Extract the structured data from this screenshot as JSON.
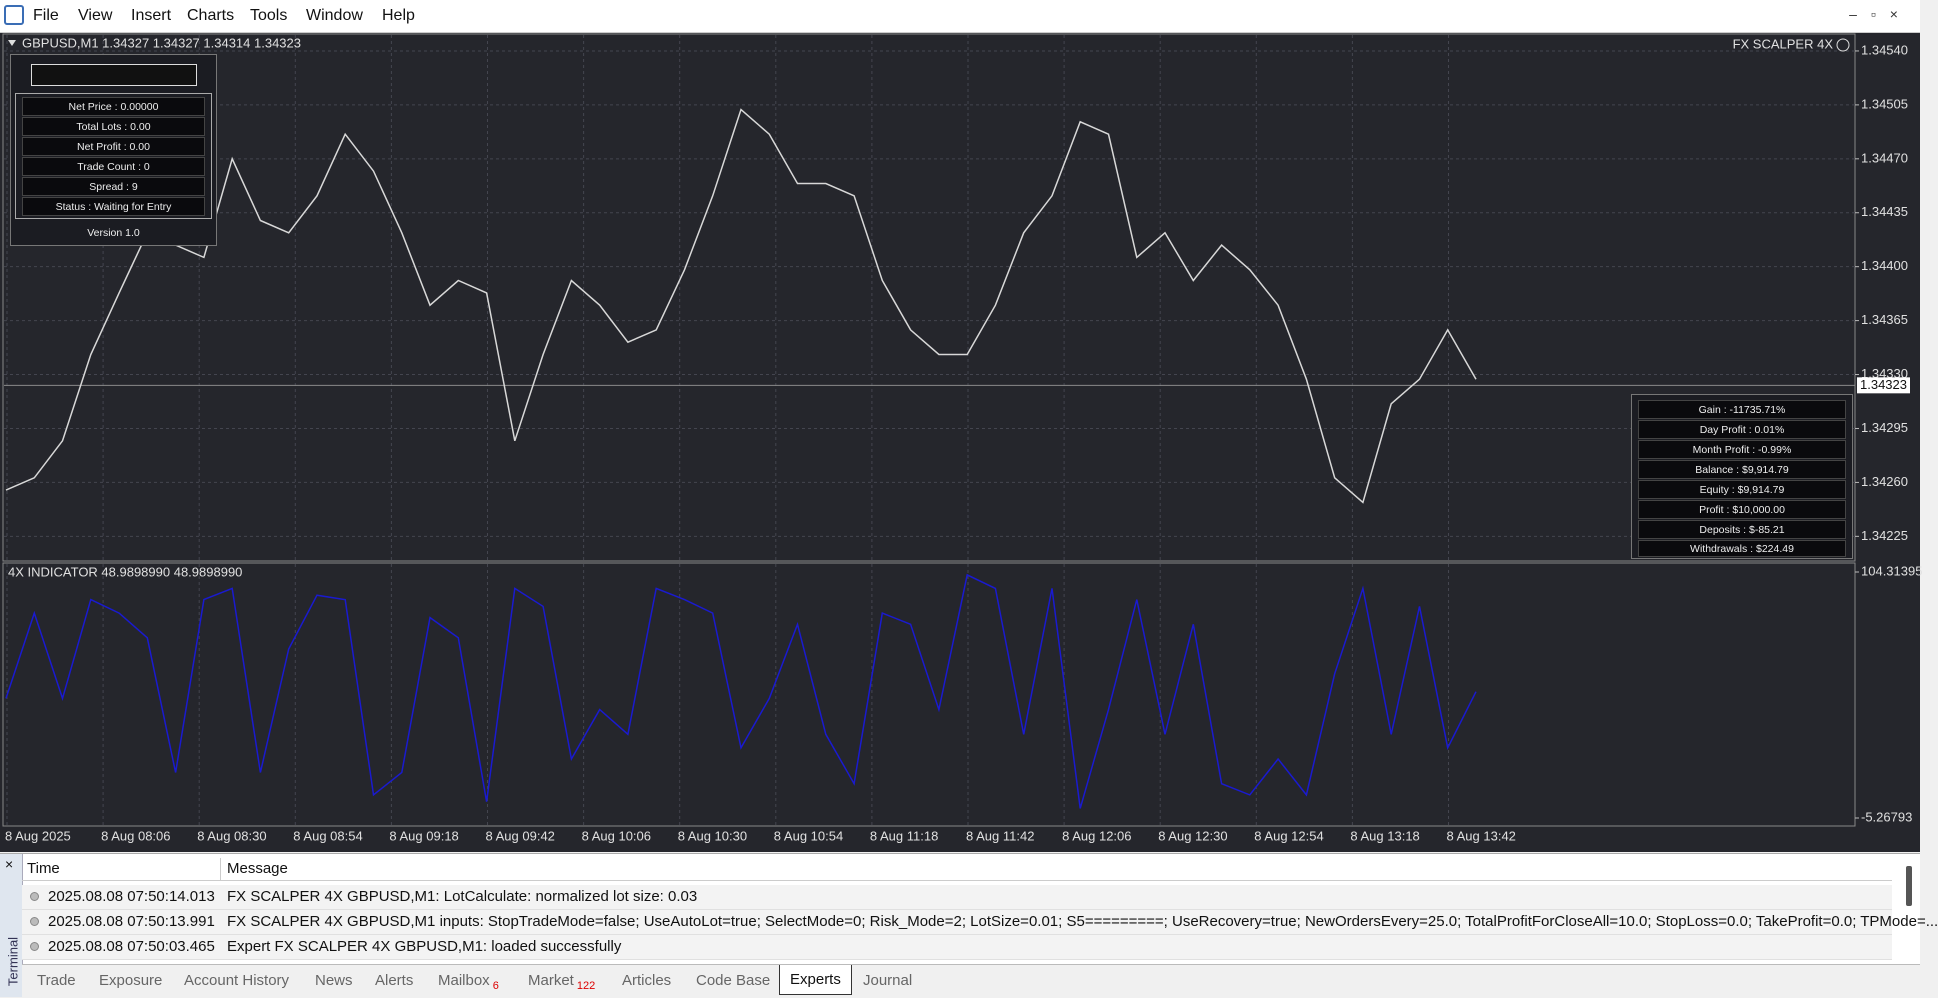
{
  "menu": [
    "File",
    "View",
    "Insert",
    "Charts",
    "Tools",
    "Window",
    "Help"
  ],
  "chart_data": [
    {
      "type": "line",
      "title": "GBPUSD,M1  1.34327 1.34327 1.34314 1.34323",
      "ea_name": "FX SCALPER 4X",
      "color": "#d8d8d8",
      "grid": true,
      "values": [
        1.34255,
        1.34263,
        1.34287,
        1.34343,
        1.34383,
        1.34422,
        1.34414,
        1.34406,
        1.3447,
        1.3443,
        1.34422,
        1.34446,
        1.34486,
        1.34462,
        1.34422,
        1.34375,
        1.34391,
        1.34383,
        1.34287,
        1.34343,
        1.34391,
        1.34375,
        1.34351,
        1.34359,
        1.34398,
        1.34446,
        1.34502,
        1.34486,
        1.34454,
        1.34454,
        1.34446,
        1.34391,
        1.34359,
        1.34343,
        1.34343,
        1.34375,
        1.34422,
        1.34446,
        1.34494,
        1.34486,
        1.34406,
        1.34422,
        1.34391,
        1.34414,
        1.34398,
        1.34375,
        1.34327,
        1.34263,
        1.34247,
        1.34311,
        1.34327,
        1.34359,
        1.34327
      ],
      "current_price": 1.34323,
      "ylim": [
        1.34209,
        1.34551
      ],
      "yticks": [
        1.34225,
        {
          "value": 1.3426,
          "label": "1.34260"
        },
        1.34295,
        {
          "value": 1.3433,
          "label": "1.34330"
        },
        1.34365,
        {
          "value": 1.344,
          "label": "1.34400"
        },
        1.34435,
        {
          "value": 1.3447,
          "label": "1.34470"
        },
        1.34505,
        {
          "value": 1.3454,
          "label": "1.34540"
        }
      ],
      "xtick_labels": [
        "8 Aug 2025",
        "8 Aug 08:06",
        "8 Aug 08:30",
        "8 Aug 08:54",
        "8 Aug 09:18",
        "8 Aug 09:42",
        "8 Aug 10:06",
        "8 Aug 10:30",
        "8 Aug 10:54",
        "8 Aug 11:18",
        "8 Aug 11:42",
        "8 Aug 12:06",
        "8 Aug 12:30",
        "8 Aug 12:54",
        "8 Aug 13:18",
        "8 Aug 13:42"
      ]
    },
    {
      "type": "line",
      "title": "4X INDICATOR 48.9898990 48.9898990",
      "color": "#1a1ad0",
      "values": [
        48,
        86,
        48,
        92,
        86,
        75,
        15,
        92,
        97,
        15,
        70,
        94,
        92,
        5,
        15,
        84,
        75,
        2,
        97,
        89,
        21,
        43,
        32,
        97,
        92,
        86,
        26,
        48,
        81,
        32,
        10,
        86,
        81,
        43,
        103,
        97,
        32,
        97,
        -1,
        43,
        92,
        32,
        81,
        10,
        5,
        21,
        5,
        59,
        97,
        32,
        89,
        26,
        51
      ],
      "ylim": [
        -5.26793,
        104.31395
      ],
      "yticks": [
        -5.26793,
        104.31395
      ]
    }
  ],
  "info_panel": {
    "rows": [
      "Net Price : 0.00000",
      "Total Lots : 0.00",
      "Net Profit : 0.00",
      "Trade Count : 0",
      "Spread : 9",
      "Status : Waiting for Entry"
    ],
    "version": "Version 1.0"
  },
  "stats_panel": [
    "Gain : -11735.71%",
    "Day Profit : 0.01%",
    "Month Profit : -0.99%",
    "Balance : $9,914.79",
    "Equity : $9,914.79",
    "Profit : $10,000.00",
    "Deposits : $-85.21",
    "Withdrawals : $224.49"
  ],
  "terminal": {
    "label": "Terminal",
    "columns": [
      "Time",
      "Message"
    ],
    "rows": [
      [
        "2025.08.08 07:50:14.013",
        "FX SCALPER 4X GBPUSD,M1: LotCalculate: normalized lot size: 0.03"
      ],
      [
        "2025.08.08 07:50:13.991",
        "FX SCALPER 4X GBPUSD,M1 inputs: StopTradeMode=false; UseAutoLot=true; SelectMode=0; Risk_Mode=2; LotSize=0.01; S5=========; UseRecovery=true; NewOrdersEvery=25.0; TotalProfitForCloseAll=10.0; StopLoss=0.0; TakeProfit=0.0; TPMode=..."
      ],
      [
        "2025.08.08 07:50:03.465",
        "Expert FX SCALPER 4X GBPUSD,M1: loaded successfully"
      ]
    ],
    "tabs": [
      {
        "name": "Trade"
      },
      {
        "name": "Exposure"
      },
      {
        "name": "Account History"
      },
      {
        "name": "News"
      },
      {
        "name": "Alerts"
      },
      {
        "name": "Mailbox",
        "badge": 6
      },
      {
        "name": "Market",
        "badge": 122
      },
      {
        "name": "Articles"
      },
      {
        "name": "Code Base"
      },
      {
        "name": "Experts"
      },
      {
        "name": "Journal"
      }
    ],
    "active_tab": "Experts"
  }
}
